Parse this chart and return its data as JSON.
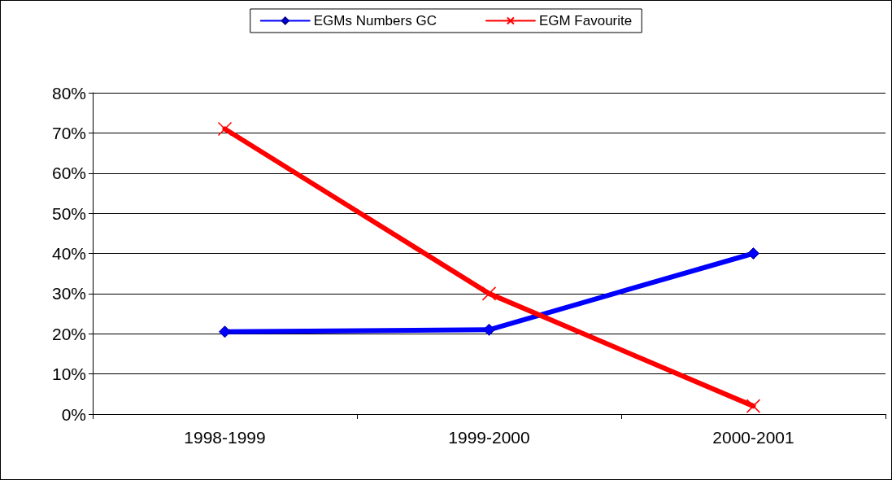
{
  "chart_data": {
    "type": "line",
    "categories": [
      "1998-1999",
      "1999-2000",
      "2000-2001"
    ],
    "series": [
      {
        "name": "EGMs Numbers GC",
        "color": "#0000ff",
        "marker": "diamond",
        "values": [
          20.5,
          21,
          40
        ]
      },
      {
        "name": "EGM Favourite",
        "color": "#ff0000",
        "marker": "cross",
        "values": [
          71,
          30,
          2
        ]
      }
    ],
    "ylim": [
      0,
      80
    ],
    "yticks": [
      {
        "value": 0,
        "label": "0%"
      },
      {
        "value": 10,
        "label": "10%"
      },
      {
        "value": 20,
        "label": "20%"
      },
      {
        "value": 30,
        "label": "30%"
      },
      {
        "value": 40,
        "label": "40%"
      },
      {
        "value": 50,
        "label": "50%"
      },
      {
        "value": 60,
        "label": "60%"
      },
      {
        "value": 70,
        "label": "70%"
      },
      {
        "value": 80,
        "label": "80%"
      }
    ],
    "grid": "y",
    "legend": "top",
    "line_style": "solid"
  }
}
